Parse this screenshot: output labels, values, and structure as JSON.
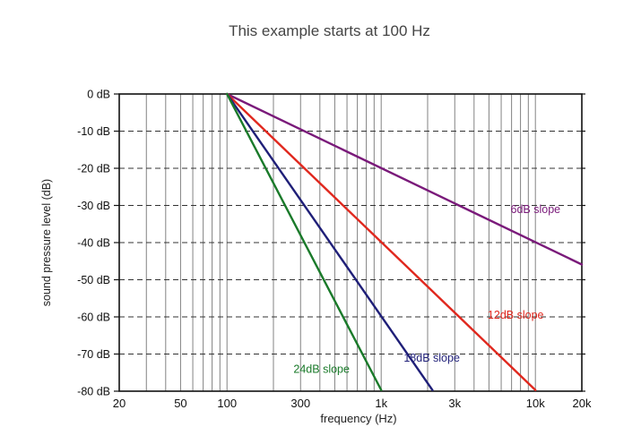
{
  "title": "This example starts at 100 Hz",
  "chart_data": {
    "type": "line",
    "title": "This example starts at 100 Hz",
    "xlabel": "frequency (Hz)",
    "ylabel": "sound pressure level (dB)",
    "xscale": "log",
    "xlim": [
      20,
      20000
    ],
    "ylim": [
      -80,
      0
    ],
    "grid": true,
    "x_ticks": [
      {
        "value": 20,
        "label": "20"
      },
      {
        "value": 50,
        "label": "50"
      },
      {
        "value": 100,
        "label": "100"
      },
      {
        "value": 300,
        "label": "300"
      },
      {
        "value": 1000,
        "label": "1k"
      },
      {
        "value": 3000,
        "label": "3k"
      },
      {
        "value": 10000,
        "label": "10k"
      },
      {
        "value": 20000,
        "label": "20k"
      }
    ],
    "y_ticks": [
      {
        "value": 0,
        "label": "0 dB"
      },
      {
        "value": -10,
        "label": "-10 dB"
      },
      {
        "value": -20,
        "label": "-20 dB"
      },
      {
        "value": -30,
        "label": "-30 dB"
      },
      {
        "value": -40,
        "label": "-40 dB"
      },
      {
        "value": -50,
        "label": "-50 dB"
      },
      {
        "value": -60,
        "label": "-60 dB"
      },
      {
        "value": -70,
        "label": "-70 dB"
      },
      {
        "value": -80,
        "label": "-80 dB"
      }
    ],
    "series": [
      {
        "name": "6dB slope",
        "color": "#7a1a7a",
        "slope_db_per_octave": 6,
        "points": [
          {
            "x": 100,
            "y": 0
          },
          {
            "x": 20000,
            "y": -45.9
          }
        ],
        "label_at": {
          "x": 6900,
          "y": -32
        }
      },
      {
        "name": "12dB slope",
        "color": "#e0281e",
        "slope_db_per_octave": 12,
        "points": [
          {
            "x": 100,
            "y": 0
          },
          {
            "x": 10000,
            "y": -79.7
          }
        ],
        "label_at": {
          "x": 4900,
          "y": -60.5
        }
      },
      {
        "name": "18dB slope",
        "color": "#1f1f78",
        "slope_db_per_octave": 18,
        "points": [
          {
            "x": 100,
            "y": 0
          },
          {
            "x": 2150,
            "y": -79.7
          }
        ],
        "label_at": {
          "x": 1400,
          "y": -72
        }
      },
      {
        "name": "24dB slope",
        "color": "#1a7a2a",
        "slope_db_per_octave": 24,
        "points": [
          {
            "x": 100,
            "y": 0
          },
          {
            "x": 1000,
            "y": -79.7
          }
        ],
        "label_at": {
          "x": 270,
          "y": -75
        }
      }
    ]
  }
}
